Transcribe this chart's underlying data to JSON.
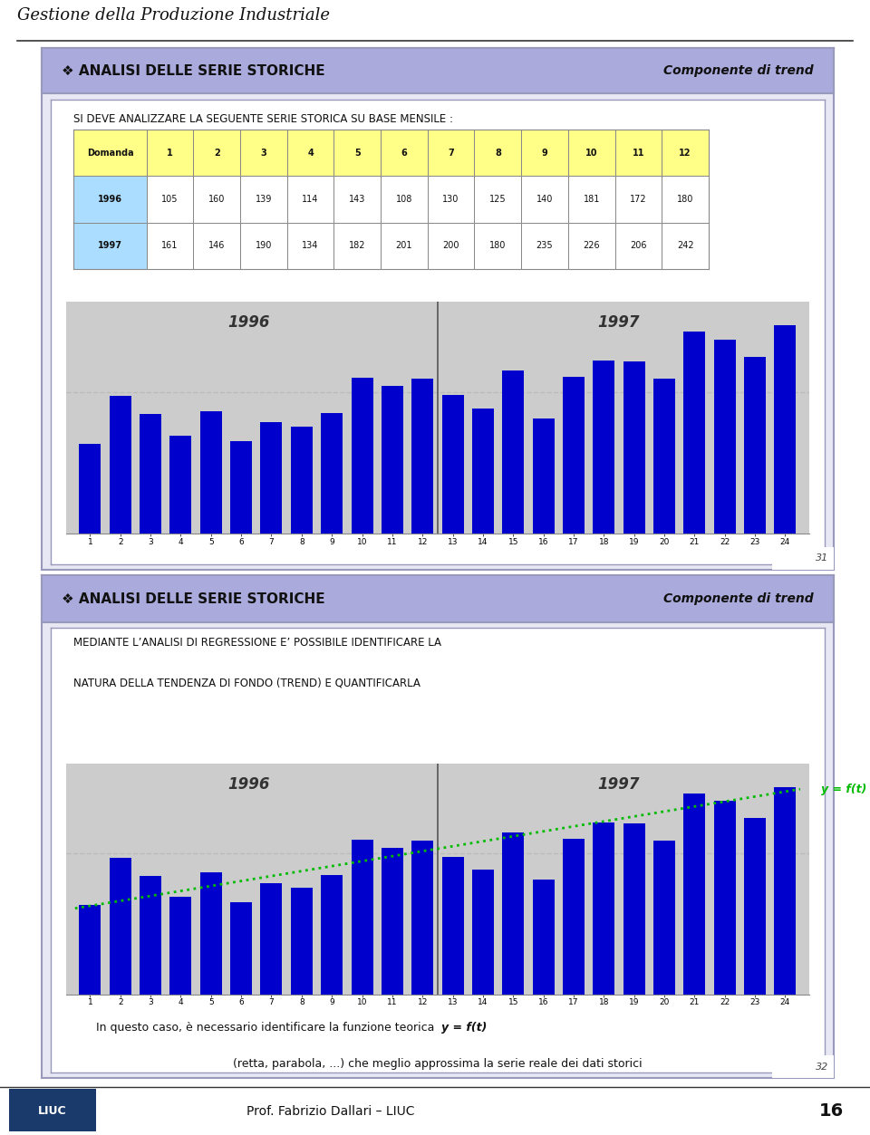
{
  "page_title": "Gestione della Produzione Industriale",
  "footer_text": "Prof. Fabrizio Dallari – LIUC",
  "page_number": "16",
  "panel1": {
    "title": "ANALISI DELLE SERIE STORICHE",
    "title_right": "Componente di trend",
    "subtitle": "SI DEVE ANALIZZARE LA SEGUENTE SERIE STORICA SU BASE MENSILE :",
    "row1996": [
      105,
      160,
      139,
      114,
      143,
      108,
      130,
      125,
      140,
      181,
      172,
      180
    ],
    "row1997": [
      161,
      146,
      190,
      134,
      182,
      201,
      200,
      180,
      235,
      226,
      206,
      242
    ],
    "label1996": "1996",
    "label1997": "1997",
    "page_num": "31"
  },
  "panel2": {
    "title": "ANALISI DELLE SERIE STORICHE",
    "title_right": "Componente di trend",
    "subtitle_line1": "MEDIANTE L’ANALISI DI REGRESSIONE E’ POSSIBILE IDENTIFICARE LA",
    "subtitle_line2": "NATURA DELLA TENDENZA DI FONDO (TREND) E QUANTIFICARLA",
    "label1996": "1996",
    "label1997": "1997",
    "trend_color": "#00BB00",
    "trend_label": "y = f(t)",
    "footnote1a": "In questo caso, è necessario identificare la funzione teorica ",
    "footnote1b": "y = f(t)",
    "footnote2": "(retta, parabola, ...) che meglio approssima la serie reale dei dati storici",
    "page_num": "32"
  },
  "bar_color": "#0000CC",
  "chart_bg": "#CCCCCC",
  "divider_color": "#555555",
  "dash_color": "#BBBBBB",
  "panel_bg": "#E8E8F4",
  "panel_border": "#9999BB",
  "header_bg": "#AAAADD",
  "inner_bg": "#FFFFFF",
  "table_header_bg": "#FFFF88",
  "table_year_bg": "#AADDFF",
  "x_labels": [
    "1",
    "2",
    "3",
    "4",
    "5",
    "6",
    "7",
    "8",
    "9",
    "10",
    "11",
    "12",
    "13",
    "14",
    "15",
    "16",
    "17",
    "18",
    "19",
    "20",
    "21",
    "22",
    "23",
    "24"
  ]
}
